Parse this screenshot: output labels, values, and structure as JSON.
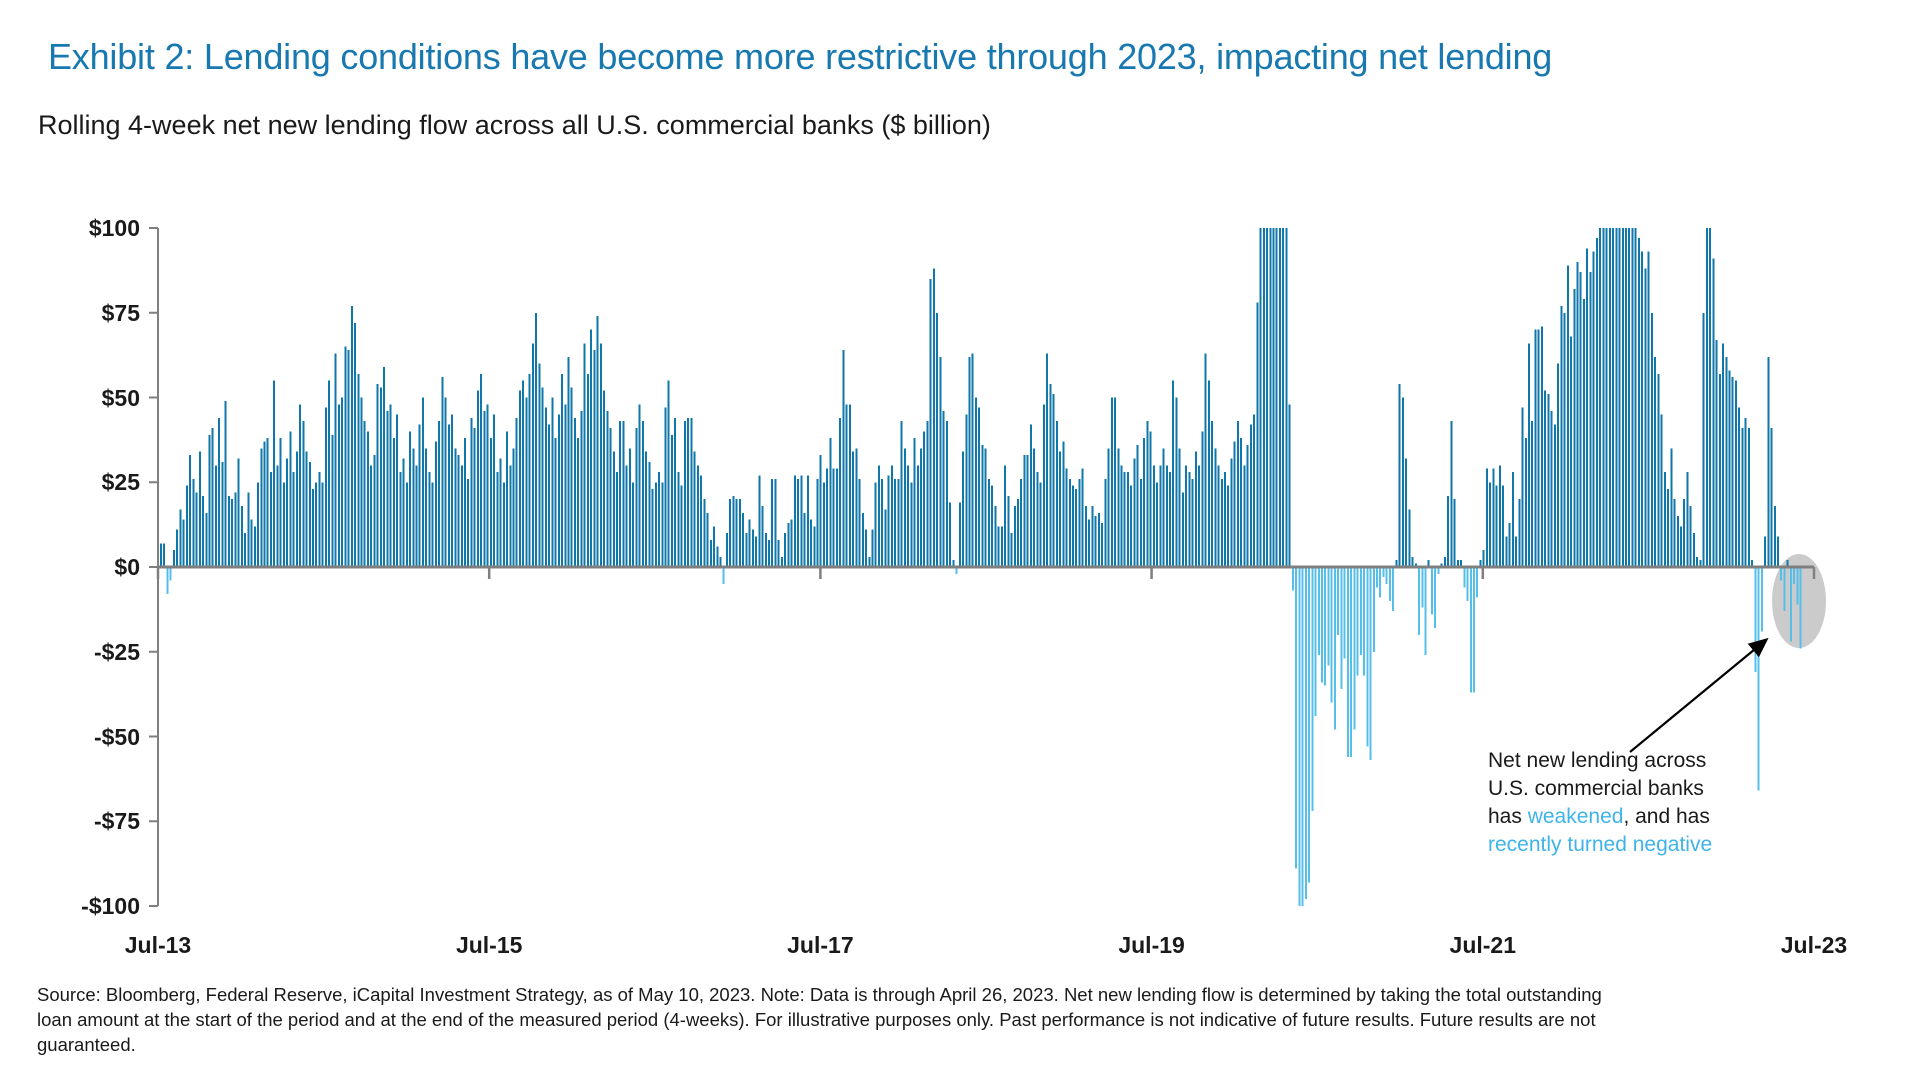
{
  "header": {
    "title": "Exhibit 2: Lending conditions have become more restrictive through 2023, impacting net lending",
    "subtitle": "Rolling 4-week net new lending flow across all U.S. commercial banks ($ billion)"
  },
  "chart_data": {
    "type": "bar",
    "title": "Rolling 4-week net new lending flow across all U.S. commercial banks",
    "unit": "$ billion",
    "frequency": "weekly",
    "x_start": "Jul-13",
    "x_end": "Apr-23",
    "ylim": [
      -100,
      100
    ],
    "grid": false,
    "clip_note": "Bars are clipped at +$100 and -$100 in the plot",
    "y_ticks": [
      {
        "value": 100,
        "label": "$100"
      },
      {
        "value": 75,
        "label": "$75"
      },
      {
        "value": 50,
        "label": "$50"
      },
      {
        "value": 25,
        "label": "$25"
      },
      {
        "value": 0,
        "label": "$0"
      },
      {
        "value": -25,
        "label": "-$25"
      },
      {
        "value": -50,
        "label": "-$50"
      },
      {
        "value": -75,
        "label": "-$75"
      },
      {
        "value": -100,
        "label": "-$100"
      }
    ],
    "x_ticks": [
      "Jul-13",
      "Jul-15",
      "Jul-17",
      "Jul-19",
      "Jul-21",
      "Jul-23"
    ],
    "colors": {
      "positive": "#0F77A9",
      "negative": "#55BFEC",
      "axis": "#7F7F7F",
      "highlight_ellipse": "#CBCBCB"
    },
    "values": [
      7,
      7,
      -8,
      -4,
      5,
      11,
      17,
      14,
      24,
      33,
      26,
      22,
      34,
      21,
      16,
      39,
      41,
      30,
      44,
      31,
      49,
      21,
      20,
      22,
      32,
      18,
      10,
      22,
      14,
      12,
      25,
      35,
      37,
      38,
      28,
      55,
      30,
      38,
      25,
      32,
      40,
      28,
      34,
      48,
      43,
      34,
      31,
      23,
      25,
      28,
      25,
      47,
      55,
      39,
      63,
      48,
      50,
      65,
      64,
      77,
      72,
      57,
      50,
      43,
      40,
      30,
      33,
      54,
      53,
      59,
      46,
      48,
      38,
      45,
      28,
      32,
      25,
      40,
      35,
      30,
      42,
      50,
      35,
      28,
      25,
      37,
      43,
      56,
      50,
      42,
      45,
      35,
      33,
      30,
      38,
      26,
      44,
      41,
      52,
      57,
      46,
      48,
      38,
      45,
      28,
      32,
      25,
      40,
      30,
      35,
      44,
      52,
      55,
      50,
      57,
      66,
      75,
      60,
      53,
      47,
      42,
      50,
      38,
      45,
      57,
      48,
      62,
      53,
      44,
      38,
      46,
      66,
      57,
      70,
      64,
      74,
      66,
      52,
      46,
      41,
      34,
      28,
      43,
      43,
      30,
      35,
      25,
      41,
      48,
      43,
      34,
      31,
      23,
      25,
      28,
      25,
      47,
      55,
      39,
      44,
      28,
      24,
      43,
      44,
      44,
      34,
      30,
      27,
      20,
      16,
      8,
      12,
      6,
      3,
      -5,
      10,
      20,
      21,
      20,
      20,
      16,
      10,
      14,
      11,
      9,
      27,
      18,
      10,
      8,
      26,
      26,
      8,
      3,
      10,
      13,
      14,
      27,
      26,
      27,
      16,
      27,
      14,
      12,
      26,
      33,
      25,
      29,
      38,
      29,
      29,
      44,
      64,
      48,
      48,
      34,
      35,
      26,
      16,
      11,
      3,
      11,
      25,
      30,
      26,
      17,
      27,
      30,
      26,
      26,
      43,
      35,
      30,
      25,
      38,
      30,
      35,
      40,
      43,
      85,
      88,
      75,
      62,
      46,
      43,
      19,
      2,
      -2,
      19,
      34,
      45,
      62,
      63,
      50,
      47,
      36,
      35,
      26,
      24,
      18,
      12,
      12,
      30,
      21,
      10,
      18,
      20,
      26,
      33,
      33,
      42,
      35,
      28,
      25,
      48,
      63,
      54,
      51,
      43,
      34,
      37,
      29,
      26,
      24,
      23,
      26,
      29,
      18,
      14,
      18,
      15,
      16,
      13,
      26,
      35,
      50,
      50,
      35,
      30,
      28,
      28,
      24,
      32,
      36,
      26,
      38,
      43,
      40,
      30,
      25,
      30,
      35,
      30,
      28,
      55,
      50,
      35,
      22,
      30,
      28,
      26,
      34,
      30,
      40,
      63,
      55,
      43,
      35,
      30,
      26,
      28,
      24,
      32,
      37,
      43,
      38,
      30,
      36,
      42,
      45,
      78,
      100,
      100,
      100,
      100,
      100,
      100,
      100,
      100,
      100,
      48,
      -7,
      -89,
      -100,
      -100,
      -98,
      -93,
      -72,
      -44,
      -26,
      -34,
      -35,
      -29,
      -40,
      -48,
      -20,
      -36,
      -27,
      -56,
      -56,
      -48,
      -32,
      -26,
      -32,
      -53,
      -57,
      -25,
      -6,
      -9,
      -3,
      -5,
      -10,
      -13,
      2,
      54,
      50,
      32,
      17,
      3,
      1,
      -20,
      -12,
      -26,
      2,
      -14,
      -18,
      -2,
      1,
      3,
      21,
      43,
      20,
      2,
      2,
      -6,
      -10,
      -37,
      -37,
      -9,
      2,
      5,
      29,
      25,
      29,
      24,
      30,
      24,
      9,
      13,
      28,
      9,
      20,
      47,
      38,
      66,
      43,
      70,
      70,
      71,
      52,
      51,
      46,
      42,
      60,
      77,
      75,
      89,
      68,
      82,
      90,
      87,
      79,
      94,
      87,
      93,
      97,
      100,
      100,
      100,
      100,
      100,
      100,
      100,
      100,
      100,
      100,
      100,
      100,
      97,
      93,
      88,
      93,
      75,
      62,
      57,
      45,
      28,
      23,
      35,
      20,
      15,
      12,
      20,
      28,
      18,
      10,
      3,
      2,
      75,
      100,
      100,
      91,
      67,
      57,
      66,
      62,
      58,
      56,
      55,
      47,
      41,
      44,
      41,
      2,
      -31,
      -66,
      -19,
      9,
      62,
      41,
      18,
      9,
      -4,
      -13,
      2,
      -22,
      -5,
      -11,
      -24
    ]
  },
  "annotation": {
    "line1": "Net new lending across",
    "line2": "U.S. commercial banks",
    "line3_pre": "has ",
    "line3_highlight": "weakened",
    "line3_post": ", and has",
    "line4": "recently turned negative",
    "highlight_color": "#3EB4E9"
  },
  "footer": {
    "source": "Source: Bloomberg, Federal Reserve, iCapital Investment Strategy, as of May 10, 2023. Note: Data is through April 26, 2023. Net new lending flow is determined by taking the total outstanding loan amount at the start of the period and at the end of the measured period (4-weeks). For illustrative purposes only. Past performance is not indicative of future results. Future results are not guaranteed.",
    "source_line1": "Source: Bloomberg, Federal Reserve, iCapital Investment Strategy, as of May 10, 2023. Note: Data is through April 26, 2023. Net new lending flow is determined by taking the total outstanding",
    "source_line2": "loan amount at the start of the period and at the end of the measured period (4-weeks). For illustrative purposes only. Past performance is not indicative of future results. Future results are not",
    "source_line3": "guaranteed."
  }
}
